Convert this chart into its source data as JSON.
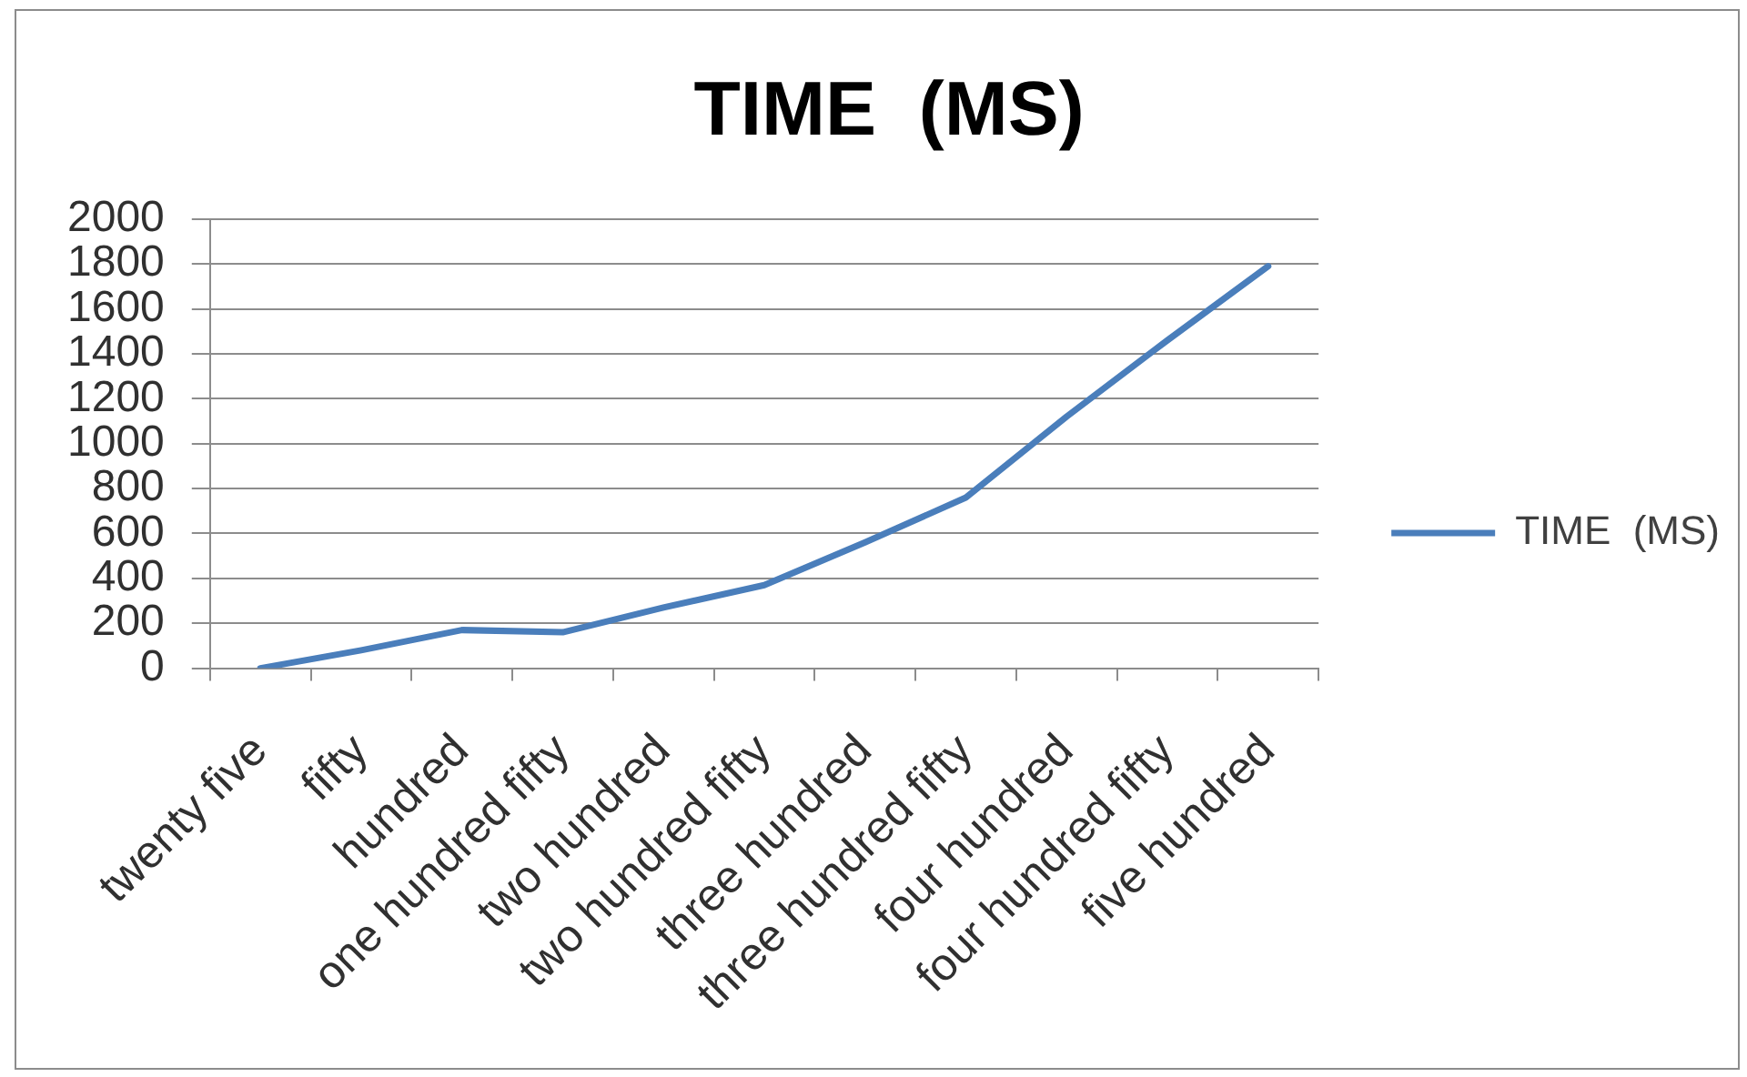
{
  "chart_data": {
    "type": "line",
    "title": "TIME  (MS)",
    "categories": [
      "twenty five",
      "fifty",
      "hundred",
      "one hundred fifty",
      "two hundred",
      "two hundred fifty",
      "three hundred",
      "three hundred fifty",
      "four hundred",
      "four hundred fifty",
      "five hundred"
    ],
    "series": [
      {
        "name": "TIME  (MS)",
        "color": "#4a7ebb",
        "values": [
          0,
          80,
          170,
          160,
          270,
          370,
          560,
          760,
          1120,
          1460,
          1790
        ]
      }
    ],
    "ylim": [
      0,
      2000
    ],
    "yticks": [
      0,
      200,
      400,
      600,
      800,
      1000,
      1200,
      1400,
      1600,
      1800,
      2000
    ],
    "grid": "y",
    "legend": "right",
    "marker": "none",
    "line_style": "solid"
  }
}
